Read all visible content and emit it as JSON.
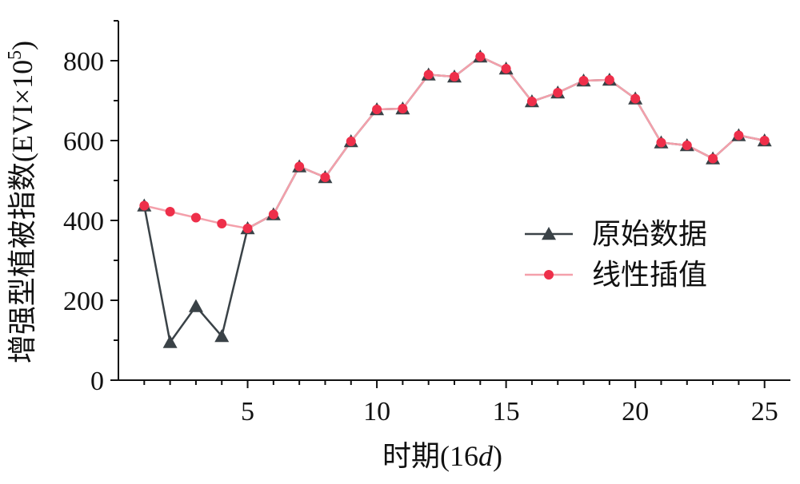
{
  "chart_data": {
    "type": "line",
    "xlabel": "时期(16d)",
    "xlabel_parts": {
      "prefix": "时期(16",
      "italic": "d",
      "suffix": ")"
    },
    "ylabel": "增强型植被指数(EVI×10⁵)",
    "ylabel_parts": {
      "base": "增强型植被指数(EVI×10",
      "sup": "5",
      "suffix": ")"
    },
    "xlim": [
      0,
      26
    ],
    "ylim": [
      0,
      900
    ],
    "xticks": [
      5,
      10,
      15,
      20,
      25
    ],
    "yticks": [
      0,
      200,
      400,
      600,
      800
    ],
    "legend_position": "center-right",
    "x": [
      1,
      2,
      3,
      4,
      5,
      6,
      7,
      8,
      9,
      10,
      11,
      12,
      13,
      14,
      15,
      16,
      17,
      18,
      19,
      20,
      21,
      22,
      23,
      24,
      25
    ],
    "series": [
      {
        "name": "原始数据",
        "color": "#3a4247",
        "marker": "triangle",
        "values": [
          437,
          95,
          185,
          110,
          380,
          415,
          535,
          508,
          598,
          678,
          680,
          765,
          760,
          810,
          780,
          698,
          720,
          750,
          752,
          705,
          595,
          588,
          555,
          613,
          600
        ]
      },
      {
        "name": "线性插值",
        "color": "#f4a0ab",
        "marker_color": "#ee2f4a",
        "marker": "circle",
        "values": [
          437,
          422,
          407,
          392,
          380,
          415,
          535,
          508,
          598,
          678,
          680,
          765,
          760,
          810,
          780,
          698,
          720,
          750,
          752,
          705,
          595,
          588,
          555,
          613,
          600
        ]
      }
    ]
  }
}
